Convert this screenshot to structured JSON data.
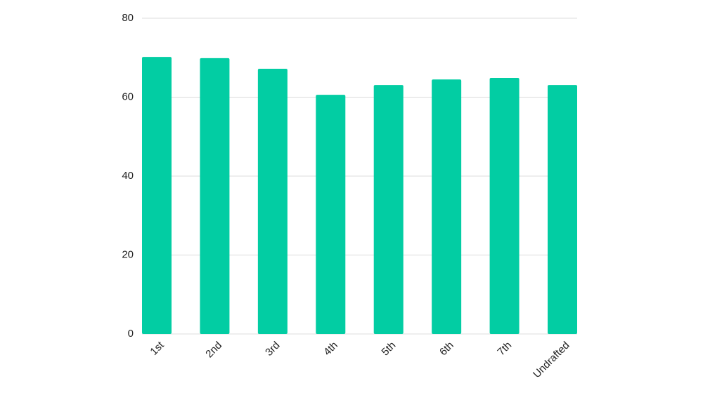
{
  "chart_data": {
    "type": "bar",
    "categories": [
      "1st",
      "2nd",
      "3rd",
      "4th",
      "5th",
      "6th",
      "7th",
      "Undrafted"
    ],
    "values": [
      70.2,
      69.9,
      67.2,
      60.6,
      63.1,
      64.5,
      64.9,
      63.1
    ],
    "color": "#02cda3",
    "ylim": [
      0,
      80
    ],
    "yticks": [
      0,
      20,
      40,
      60,
      80
    ],
    "grid": true
  }
}
